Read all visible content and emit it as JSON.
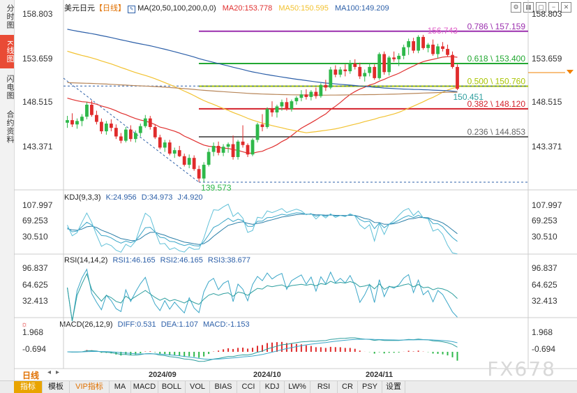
{
  "sidebar": {
    "tabs": [
      "分时图",
      "K线图",
      "闪电图",
      "合约资料"
    ],
    "active_index": 1
  },
  "toolbar": {
    "icons": [
      "chart-settings-icon",
      "grid-layout-icon",
      "window-icon",
      "minimize-icon",
      "close-icon"
    ],
    "glyphs": [
      "⚙",
      "▦",
      "▢",
      "−",
      "✕"
    ]
  },
  "price_panel": {
    "title": "美元日元",
    "interval": "【日线】",
    "ma_label": "MA(20,50,100,200,0,0)",
    "ma20": "MA20:153.778",
    "ma50": "MA50:150.595",
    "ma100": "MA100:149.209",
    "high_label": "156.743",
    "low_label": "139.573",
    "last_label": "150.451",
    "y_ticks": [
      "158.803",
      "153.659",
      "148.515",
      "143.371"
    ]
  },
  "fibonacci": [
    {
      "label": "0.786 \\ 157.159",
      "price": 157.159,
      "color": "#9b2fae"
    },
    {
      "label": "0.618 \\ 153.400",
      "price": 153.4,
      "color": "#22a832"
    },
    {
      "label": "0.500 \\ 150.760",
      "price": 150.76,
      "color": "#a8c400"
    },
    {
      "label": "0.382 \\ 148.120",
      "price": 148.12,
      "color": "#d3212b"
    },
    {
      "label": "0.236 \\ 144.853",
      "price": 144.853,
      "color": "#666666"
    }
  ],
  "kdj_panel": {
    "title": "KDJ(9,3,3)",
    "k": "K:24.956",
    "d": "D:34.973",
    "j": "J:4.920",
    "y_ticks": [
      "107.997",
      "69.253",
      "30.510"
    ]
  },
  "rsi_panel": {
    "title": "RSI(14,14,2)",
    "rsi1": "RSI1:46.165",
    "rsi2": "RSI2:46.165",
    "rsi3": "RSI3:38.677",
    "y_ticks": [
      "96.837",
      "64.625",
      "32.413"
    ]
  },
  "macd_panel": {
    "title": "MACD(26,12,9)",
    "diff": "DIFF:0.531",
    "dea": "DEA:1.107",
    "macd": "MACD:-1.153",
    "y_ticks": [
      "1.968",
      "-0.694"
    ]
  },
  "x_axis": {
    "ticks": [
      "2024/09",
      "2024/10",
      "2024/11"
    ]
  },
  "period_label": "日线",
  "bottom_tabs": [
    "指标",
    "模板",
    "VIP指标",
    "MA",
    "MACD",
    "BOLL",
    "VOL",
    "BIAS",
    "CCI",
    "KDJ",
    "LW%",
    "RSI",
    "CR",
    "PSY",
    "设置"
  ],
  "watermark": "FX678",
  "colors": {
    "up": "#2eb84a",
    "down": "#e02b2b",
    "ma20": "#e0302f",
    "ma50": "#f2c230",
    "ma100": "#2c5fa8",
    "ma200": "#b8875a",
    "accent": "#f08000"
  },
  "chart_data": {
    "type": "candlestick",
    "series_name": "USD/JPY daily",
    "ylim": [
      139.0,
      159.5
    ],
    "candles": [
      [
        146.5,
        147.3,
        145.9,
        146.8
      ],
      [
        146.8,
        147.6,
        146.0,
        146.3
      ],
      [
        146.3,
        147.0,
        145.8,
        146.7
      ],
      [
        146.7,
        147.5,
        146.1,
        147.2
      ],
      [
        147.2,
        148.9,
        146.9,
        148.6
      ],
      [
        148.6,
        149.1,
        147.2,
        147.4
      ],
      [
        147.4,
        147.9,
        146.3,
        146.6
      ],
      [
        146.6,
        147.0,
        145.2,
        145.5
      ],
      [
        145.5,
        146.7,
        145.1,
        146.4
      ],
      [
        146.4,
        146.9,
        145.5,
        145.9
      ],
      [
        145.9,
        146.3,
        144.6,
        144.9
      ],
      [
        144.9,
        145.3,
        144.1,
        144.4
      ],
      [
        144.4,
        146.0,
        144.2,
        145.7
      ],
      [
        145.7,
        146.2,
        144.3,
        144.6
      ],
      [
        144.6,
        145.6,
        144.2,
        145.3
      ],
      [
        145.3,
        146.4,
        144.9,
        146.1
      ],
      [
        146.1,
        147.4,
        145.9,
        147.0
      ],
      [
        147.0,
        147.3,
        145.7,
        146.0
      ],
      [
        146.0,
        146.3,
        144.6,
        144.8
      ],
      [
        144.8,
        145.1,
        143.4,
        143.6
      ],
      [
        143.6,
        144.5,
        143.1,
        144.2
      ],
      [
        144.2,
        144.5,
        142.7,
        142.9
      ],
      [
        142.9,
        143.6,
        142.4,
        143.3
      ],
      [
        143.3,
        143.8,
        142.5,
        142.6
      ],
      [
        142.6,
        142.9,
        141.4,
        141.6
      ],
      [
        141.6,
        142.8,
        141.2,
        142.4
      ],
      [
        142.4,
        142.7,
        140.9,
        141.1
      ],
      [
        141.1,
        141.5,
        139.6,
        140.0
      ],
      [
        140.0,
        141.9,
        139.6,
        141.6
      ],
      [
        141.6,
        143.5,
        141.4,
        143.1
      ],
      [
        143.1,
        144.2,
        142.6,
        143.8
      ],
      [
        143.8,
        144.3,
        142.7,
        143.0
      ],
      [
        143.0,
        144.0,
        142.6,
        143.7
      ],
      [
        143.7,
        144.2,
        143.0,
        144.0
      ],
      [
        144.0,
        145.0,
        142.2,
        142.5
      ],
      [
        142.5,
        144.5,
        142.2,
        144.3
      ],
      [
        144.3,
        146.2,
        143.6,
        143.9
      ],
      [
        143.9,
        144.1,
        142.5,
        142.8
      ],
      [
        142.8,
        144.7,
        142.6,
        144.5
      ],
      [
        144.5,
        146.5,
        144.2,
        146.3
      ],
      [
        146.3,
        147.5,
        145.5,
        146.0
      ],
      [
        146.0,
        148.3,
        145.8,
        148.1
      ],
      [
        148.1,
        149.0,
        147.2,
        147.7
      ],
      [
        147.7,
        148.6,
        147.1,
        148.4
      ],
      [
        148.4,
        149.2,
        147.9,
        148.9
      ],
      [
        148.9,
        149.4,
        147.9,
        148.1
      ],
      [
        148.1,
        149.2,
        147.8,
        149.0
      ],
      [
        149.0,
        149.6,
        148.6,
        149.4
      ],
      [
        149.4,
        150.3,
        149.0,
        149.8
      ],
      [
        149.8,
        150.4,
        149.2,
        149.5
      ],
      [
        149.5,
        150.3,
        149.1,
        150.1
      ],
      [
        150.1,
        150.6,
        149.3,
        149.6
      ],
      [
        149.6,
        151.1,
        149.4,
        150.9
      ],
      [
        150.9,
        151.5,
        150.2,
        150.6
      ],
      [
        150.6,
        153.0,
        150.4,
        152.7
      ],
      [
        152.7,
        153.2,
        151.8,
        152.1
      ],
      [
        152.1,
        153.0,
        151.8,
        152.7
      ],
      [
        152.7,
        153.3,
        151.9,
        152.5
      ],
      [
        152.5,
        153.8,
        152.2,
        153.4
      ],
      [
        153.4,
        153.9,
        152.7,
        153.0
      ],
      [
        153.0,
        153.5,
        151.6,
        151.9
      ],
      [
        151.9,
        152.7,
        151.3,
        152.3
      ],
      [
        152.3,
        153.4,
        151.9,
        153.0
      ],
      [
        153.0,
        153.3,
        151.5,
        151.7
      ],
      [
        151.7,
        154.7,
        151.5,
        154.5
      ],
      [
        154.5,
        154.8,
        152.1,
        152.4
      ],
      [
        152.4,
        154.3,
        152.0,
        154.1
      ],
      [
        154.1,
        154.8,
        153.6,
        153.9
      ],
      [
        153.9,
        154.6,
        153.1,
        154.3
      ],
      [
        154.3,
        155.6,
        153.9,
        155.3
      ],
      [
        155.3,
        156.3,
        154.4,
        156.0
      ],
      [
        156.0,
        156.4,
        154.6,
        154.9
      ],
      [
        154.9,
        156.7,
        154.6,
        156.5
      ],
      [
        156.5,
        156.74,
        155.0,
        155.2
      ],
      [
        155.2,
        155.8,
        154.7,
        155.6
      ],
      [
        155.6,
        156.2,
        154.3,
        154.5
      ],
      [
        154.5,
        155.7,
        154.0,
        155.4
      ],
      [
        155.4,
        155.9,
        154.8,
        155.1
      ],
      [
        155.1,
        155.6,
        154.2,
        154.4
      ],
      [
        154.4,
        154.8,
        152.8,
        153.0
      ],
      [
        153.0,
        153.3,
        150.3,
        150.45
      ]
    ],
    "fibonacci_levels": [
      {
        "ratio": 0.786,
        "price": 157.159
      },
      {
        "ratio": 0.618,
        "price": 153.4
      },
      {
        "ratio": 0.5,
        "price": 150.76
      },
      {
        "ratio": 0.382,
        "price": 148.12
      },
      {
        "ratio": 0.236,
        "price": 144.853
      }
    ],
    "swing_high": 156.743,
    "swing_low": 139.573,
    "last_price": 150.451,
    "moving_averages": [
      {
        "name": "MA20",
        "value": 153.778
      },
      {
        "name": "MA50",
        "value": 150.595
      },
      {
        "name": "MA100",
        "value": 149.209
      }
    ],
    "x_ticks": [
      "2024/09",
      "2024/10",
      "2024/11"
    ],
    "kdj": {
      "K": 24.956,
      "D": 34.973,
      "J": 4.92,
      "ylim": [
        0,
        120
      ]
    },
    "rsi": {
      "RSI1": 46.165,
      "RSI2": 46.165,
      "RSI3": 38.677,
      "ylim": [
        10,
        110
      ]
    },
    "macd": {
      "DIFF": 0.531,
      "DEA": 1.107,
      "MACD": -1.153,
      "ylim": [
        -1.8,
        3.2
      ]
    }
  }
}
